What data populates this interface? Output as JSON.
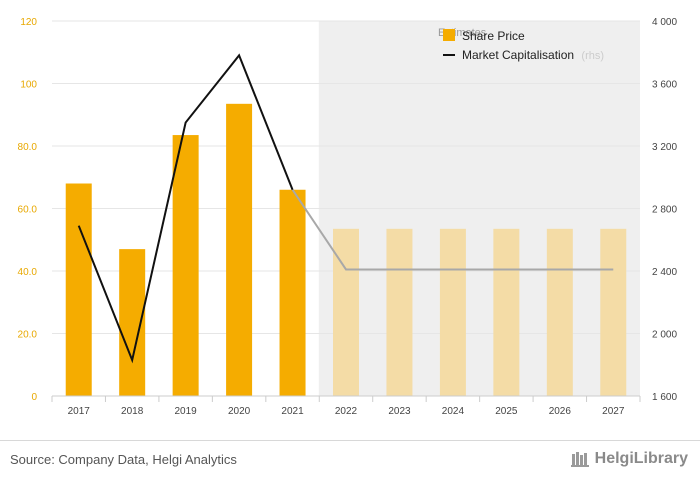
{
  "chart_data": {
    "type": "bar+line",
    "categories": [
      "2017",
      "2018",
      "2019",
      "2020",
      "2021",
      "2022",
      "2023",
      "2024",
      "2025",
      "2026",
      "2027"
    ],
    "estimate_start_index": 5,
    "estimates_label": "Estimates",
    "series": [
      {
        "name": "Share Price",
        "type": "bar",
        "axis": "left",
        "values": [
          68,
          47,
          83.5,
          93.5,
          66,
          53.5,
          53.5,
          53.5,
          53.5,
          53.5,
          53.5
        ]
      },
      {
        "name": "Market Capitalisation",
        "name_suffix": "(rhs)",
        "type": "line",
        "axis": "right",
        "values": [
          2690,
          1830,
          3350,
          3780,
          2920,
          2410,
          2410,
          2410,
          2410,
          2410,
          2410
        ]
      }
    ],
    "left_axis": {
      "min": 0,
      "max": 120,
      "ticks": [
        "0",
        "20.0",
        "40.0",
        "60.0",
        "80.0",
        "100",
        "120"
      ]
    },
    "right_axis": {
      "min": 1600,
      "max": 4000,
      "ticks": [
        "1 600",
        "2 000",
        "2 400",
        "2 800",
        "3 200",
        "3 600",
        "4 000"
      ]
    },
    "colors": {
      "bar": "#f5ac00",
      "bar_estimate": "#f4dca6",
      "line": "#111111",
      "line_estimate": "#a8a8a8",
      "estimate_bg": "#efefef"
    },
    "legend_position": "top-right"
  },
  "footer": {
    "source": "Source: Company Data, Helgi Analytics",
    "brand": "HelgiLibrary"
  }
}
